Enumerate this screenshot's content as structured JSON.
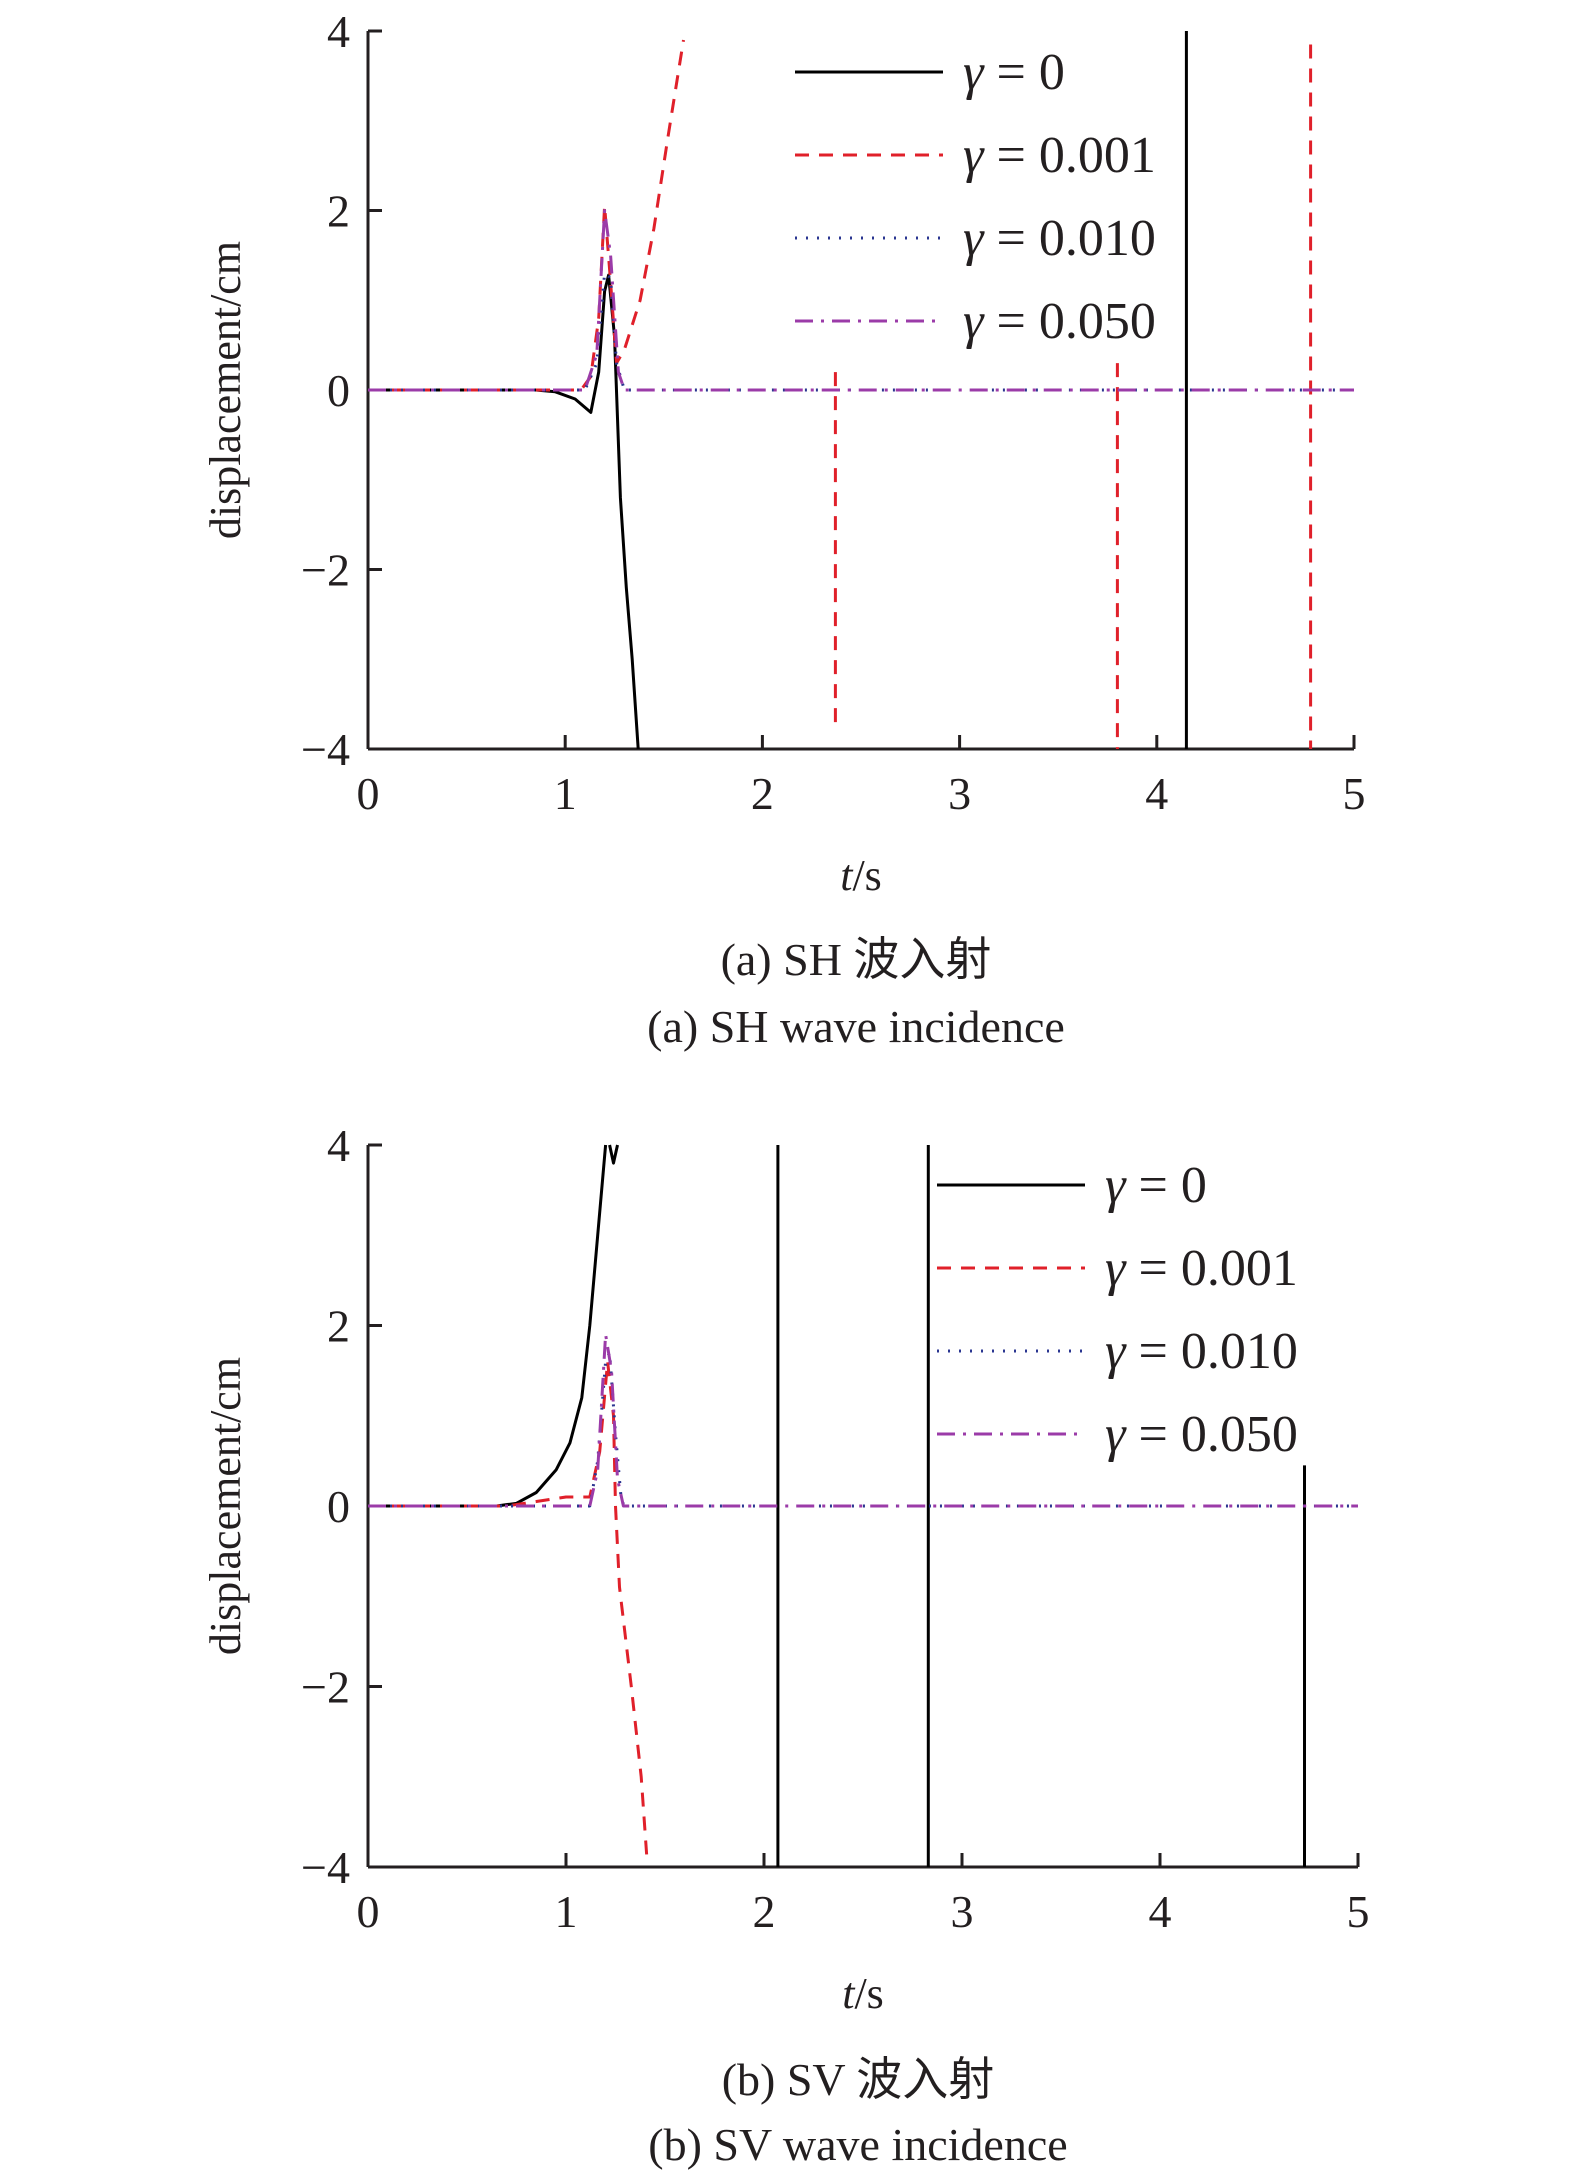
{
  "colors": {
    "g0": "#000000",
    "g001": "#e0202a",
    "g010": "#2a3590",
    "g050": "#9b3ba8",
    "axis": "#231f20"
  },
  "chart_data": [
    {
      "type": "line",
      "title": "",
      "caption_cn": "(a) SH 波入射",
      "caption_en": "(a) SH wave incidence",
      "xlabel_italic": "t",
      "xlabel_unit": "/s",
      "ylabel": "displacement/cm",
      "xlim": [
        0,
        5
      ],
      "ylim": [
        -4,
        4
      ],
      "xticks": [
        "0",
        "1",
        "2",
        "3",
        "4",
        "5"
      ],
      "yticks": [
        "4",
        "2",
        "0",
        "−2",
        "−4"
      ],
      "legend_position": "top-right",
      "series": [
        {
          "name": "γ = 0",
          "symbol": "γ",
          "value": "= 0",
          "style": "solid",
          "color_key": "g0",
          "segments": [
            [
              [
                0,
                0
              ],
              [
                0.85,
                0
              ],
              [
                0.95,
                -0.02
              ],
              [
                1.05,
                -0.1
              ],
              [
                1.13,
                -0.25
              ],
              [
                1.17,
                0.2
              ],
              [
                1.2,
                1.1
              ],
              [
                1.22,
                1.28
              ],
              [
                1.25,
                0.6
              ],
              [
                1.28,
                -1.2
              ],
              [
                1.31,
                -2.2
              ],
              [
                1.34,
                -3
              ],
              [
                1.37,
                -4
              ]
            ],
            [
              [
                4.15,
                -4
              ],
              [
                4.15,
                4
              ]
            ]
          ]
        },
        {
          "name": "γ = 0.001",
          "symbol": "γ",
          "value": "= 0.001",
          "style": "dashed",
          "color_key": "g001",
          "segments": [
            [
              [
                0,
                0
              ],
              [
                1.08,
                0
              ],
              [
                1.13,
                0.15
              ],
              [
                1.17,
                0.8
              ],
              [
                1.2,
                2.05
              ],
              [
                1.23,
                1.2
              ],
              [
                1.26,
                0.3
              ],
              [
                1.3,
                0.45
              ],
              [
                1.38,
                1.0
              ],
              [
                1.45,
                1.8
              ],
              [
                1.52,
                2.8
              ],
              [
                1.6,
                3.9
              ]
            ],
            [
              [
                2.37,
                0.2
              ],
              [
                2.37,
                -3.8
              ]
            ],
            [
              [
                3.8,
                0.3
              ],
              [
                3.8,
                -4
              ]
            ],
            [
              [
                4.78,
                3.85
              ],
              [
                4.78,
                -4
              ]
            ]
          ]
        },
        {
          "name": "γ = 0.010",
          "symbol": "γ",
          "value": "= 0.010",
          "style": "dotted",
          "color_key": "g010",
          "segments": [
            [
              [
                0,
                0
              ],
              [
                1.1,
                0
              ],
              [
                1.16,
                0.3
              ],
              [
                1.2,
                1.3
              ],
              [
                1.23,
                1.25
              ],
              [
                1.26,
                0.3
              ],
              [
                1.3,
                0
              ],
              [
                5,
                0
              ]
            ]
          ]
        },
        {
          "name": "γ = 0.050",
          "symbol": "γ",
          "value": "= 0.050",
          "style": "dashdot",
          "color_key": "g050",
          "segments": [
            [
              [
                0,
                0
              ],
              [
                1.1,
                0
              ],
              [
                1.16,
                0.4
              ],
              [
                1.2,
                2.0
              ],
              [
                1.23,
                1.5
              ],
              [
                1.27,
                0.2
              ],
              [
                1.3,
                0
              ],
              [
                5,
                0
              ]
            ]
          ]
        }
      ]
    },
    {
      "type": "line",
      "title": "",
      "caption_cn": "(b) SV 波入射",
      "caption_en": "(b) SV wave incidence",
      "xlabel_italic": "t",
      "xlabel_unit": "/s",
      "ylabel": "displacement/cm",
      "xlim": [
        0,
        5
      ],
      "ylim": [
        -4,
        4
      ],
      "xticks": [
        "0",
        "1",
        "2",
        "3",
        "4",
        "5"
      ],
      "yticks": [
        "4",
        "2",
        "0",
        "−2",
        "−4"
      ],
      "legend_position": "top-right",
      "series": [
        {
          "name": "γ = 0",
          "symbol": "γ",
          "value": "= 0",
          "style": "solid",
          "color_key": "g0",
          "segments": [
            [
              [
                0,
                0
              ],
              [
                0.65,
                0
              ],
              [
                0.75,
                0.03
              ],
              [
                0.85,
                0.15
              ],
              [
                0.95,
                0.4
              ],
              [
                1.02,
                0.7
              ],
              [
                1.08,
                1.2
              ],
              [
                1.12,
                2.0
              ],
              [
                1.16,
                3.0
              ],
              [
                1.2,
                4.0
              ]
            ],
            [
              [
                1.22,
                4
              ],
              [
                1.24,
                3.8
              ],
              [
                1.26,
                4
              ]
            ],
            [
              [
                2.07,
                4
              ],
              [
                2.07,
                -4
              ]
            ],
            [
              [
                2.83,
                4
              ],
              [
                2.83,
                -4
              ]
            ],
            [
              [
                4.73,
                0.45
              ],
              [
                4.73,
                -4
              ]
            ]
          ]
        },
        {
          "name": "γ = 0.001",
          "symbol": "γ",
          "value": "= 0.001",
          "style": "dashed",
          "color_key": "g001",
          "segments": [
            [
              [
                0,
                0
              ],
              [
                0.7,
                0
              ],
              [
                0.85,
                0.05
              ],
              [
                1.0,
                0.1
              ],
              [
                1.12,
                0.1
              ],
              [
                1.17,
                0.6
              ],
              [
                1.21,
                1.6
              ],
              [
                1.24,
                1.0
              ],
              [
                1.25,
                0
              ],
              [
                1.27,
                -0.9
              ],
              [
                1.33,
                -2
              ],
              [
                1.38,
                -3
              ],
              [
                1.41,
                -3.95
              ]
            ]
          ]
        },
        {
          "name": "γ = 0.010",
          "symbol": "γ",
          "value": "= 0.010",
          "style": "dotted",
          "color_key": "g010",
          "segments": [
            [
              [
                0,
                0
              ],
              [
                1.12,
                0
              ],
              [
                1.16,
                0.5
              ],
              [
                1.2,
                1.6
              ],
              [
                1.22,
                1.7
              ],
              [
                1.25,
                0.8
              ],
              [
                1.28,
                0.05
              ],
              [
                1.3,
                0
              ],
              [
                5,
                0
              ]
            ]
          ]
        },
        {
          "name": "γ = 0.050",
          "symbol": "γ",
          "value": "= 0.050",
          "style": "dashdot",
          "color_key": "g050",
          "segments": [
            [
              [
                0,
                0
              ],
              [
                1.12,
                0
              ],
              [
                1.16,
                0.4
              ],
              [
                1.2,
                1.9
              ],
              [
                1.23,
                1.5
              ],
              [
                1.26,
                0.3
              ],
              [
                1.29,
                0
              ],
              [
                5,
                0
              ]
            ]
          ]
        }
      ]
    }
  ]
}
